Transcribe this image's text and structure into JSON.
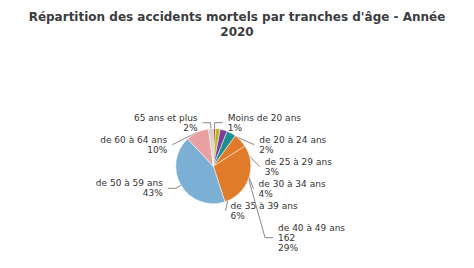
{
  "chart_data": {
    "type": "pie",
    "title": "Répartition des accidents mortels par tranches d'âge - Année\n2020",
    "categories": [
      "Moins de 20 ans\n1%",
      "de 20 à 24 ans\n2%",
      "de 25 à 29 ans\n3%",
      "de 30 à 34 ans\n4%",
      "de 35 à 39 ans\n6%",
      "de 40 à 49 ans\n162\n29%",
      "de 50 à 59 ans\n43%",
      "de 60 à 64 ans\n10%",
      "65 ans et plus\n2%"
    ],
    "values": [
      1,
      2,
      3,
      4,
      6,
      29,
      43,
      10,
      2
    ],
    "colors": [
      "#c0392b",
      "#b8b820",
      "#7d3c98",
      "#1a9090",
      "#e07b2a",
      "#e07b2a",
      "#7bafd4",
      "#e8a0a0",
      "#d0d0d0"
    ]
  }
}
